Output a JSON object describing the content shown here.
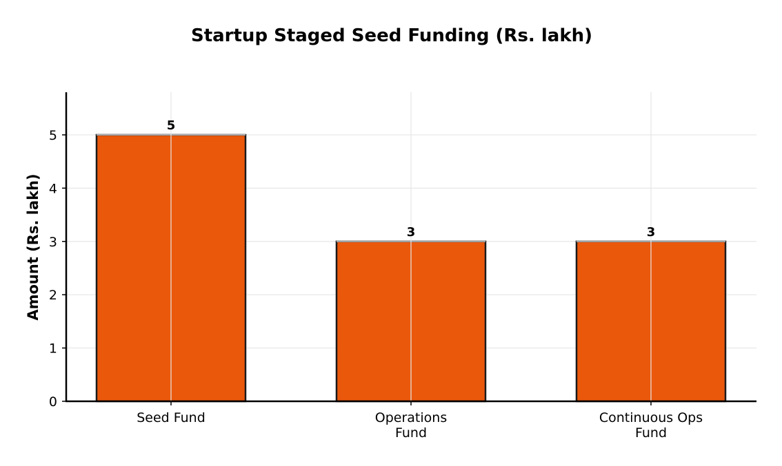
{
  "chart_data": {
    "type": "bar",
    "title": "Startup Staged Seed Funding (Rs. lakh)",
    "ylabel": "Amount (Rs. lakh)",
    "xlabel": "",
    "categories": [
      [
        "Seed Fund"
      ],
      [
        "Operations",
        "Fund"
      ],
      [
        "Continuous Ops",
        "Fund"
      ]
    ],
    "values": [
      5,
      3,
      3
    ],
    "data_labels": [
      "5",
      "3",
      "3"
    ],
    "yticks": [
      0,
      1,
      2,
      3,
      4,
      5
    ],
    "ylim": [
      0,
      5.8
    ],
    "grid": true,
    "bar_color": "#EA580C",
    "bar_edge_color": "#1a1a1a",
    "grid_color": "#e6e6e6"
  }
}
